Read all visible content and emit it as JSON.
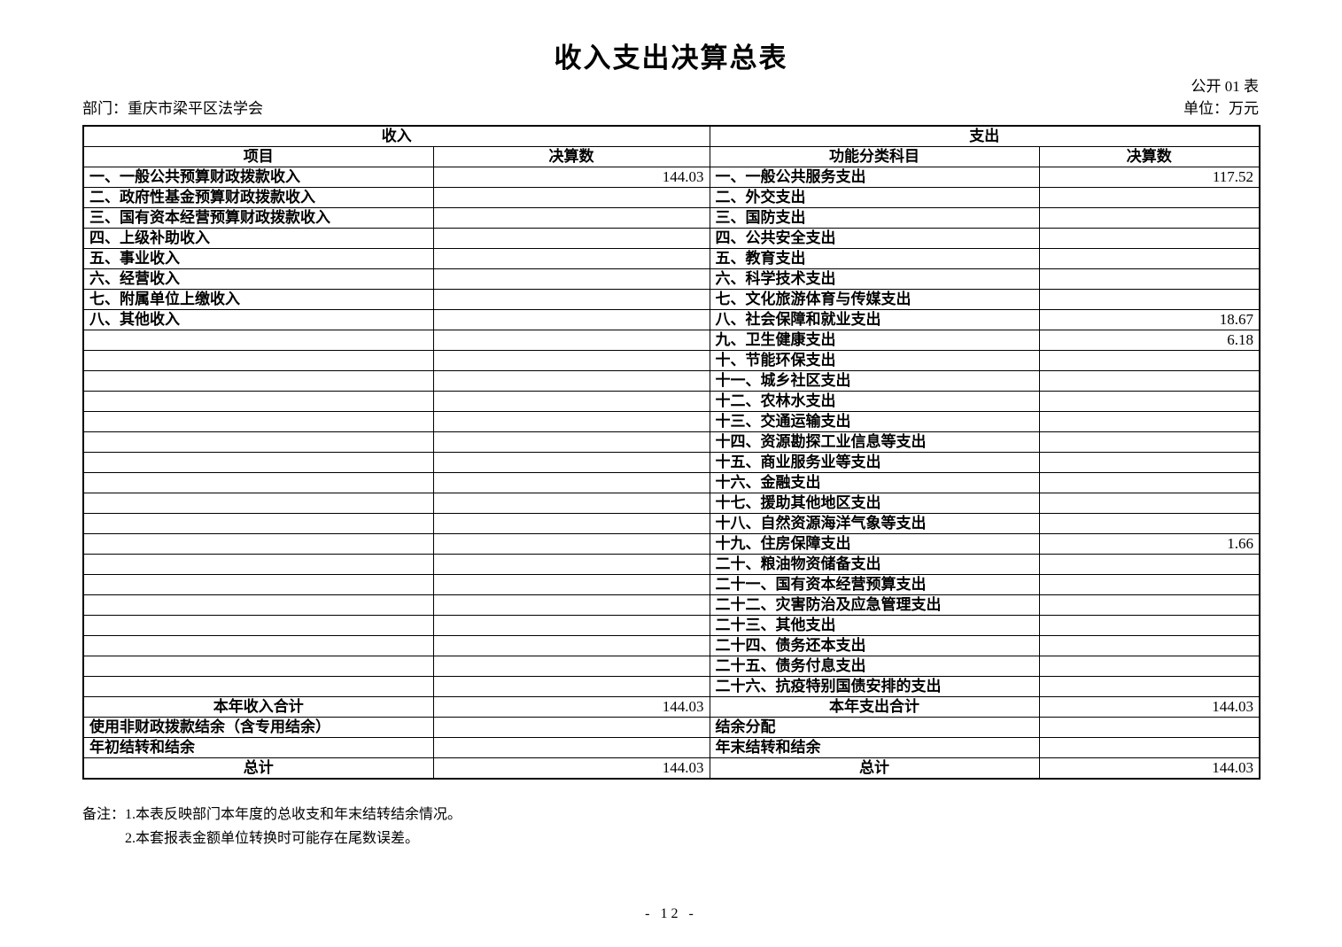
{
  "page": {
    "title": "收入支出决算总表",
    "doc_code": "公开 01 表",
    "department": "部门：重庆市梁平区法学会",
    "unit": "单位：万元",
    "notes_label": "备注：",
    "notes": [
      "1.本表反映部门本年度的总收支和年末结转结余情况。",
      "2.本套报表金额单位转换时可能存在尾数误差。"
    ],
    "page_number": "- 12 -"
  },
  "table": {
    "income_header": "收入",
    "expense_header": "支出",
    "income_item_col": "项目",
    "income_value_col": "决算数",
    "expense_item_col": "功能分类科目",
    "expense_value_col": "决算数",
    "rows": [
      {
        "inc_label": "一、一般公共预算财政拨款收入",
        "inc_value": "144.03",
        "exp_label": "一、一般公共服务支出",
        "exp_value": "117.52"
      },
      {
        "inc_label": "二、政府性基金预算财政拨款收入",
        "inc_value": "",
        "exp_label": "二、外交支出",
        "exp_value": ""
      },
      {
        "inc_label": "三、国有资本经营预算财政拨款收入",
        "inc_value": "",
        "exp_label": "三、国防支出",
        "exp_value": ""
      },
      {
        "inc_label": "四、上级补助收入",
        "inc_value": "",
        "exp_label": "四、公共安全支出",
        "exp_value": ""
      },
      {
        "inc_label": "五、事业收入",
        "inc_value": "",
        "exp_label": "五、教育支出",
        "exp_value": ""
      },
      {
        "inc_label": "六、经营收入",
        "inc_value": "",
        "exp_label": "六、科学技术支出",
        "exp_value": ""
      },
      {
        "inc_label": "七、附属单位上缴收入",
        "inc_value": "",
        "exp_label": "七、文化旅游体育与传媒支出",
        "exp_value": ""
      },
      {
        "inc_label": "八、其他收入",
        "inc_value": "",
        "exp_label": "八、社会保障和就业支出",
        "exp_value": "18.67"
      },
      {
        "inc_label": "",
        "inc_value": "",
        "exp_label": "九、卫生健康支出",
        "exp_value": "6.18"
      },
      {
        "inc_label": "",
        "inc_value": "",
        "exp_label": "十、节能环保支出",
        "exp_value": ""
      },
      {
        "inc_label": "",
        "inc_value": "",
        "exp_label": "十一、城乡社区支出",
        "exp_value": ""
      },
      {
        "inc_label": "",
        "inc_value": "",
        "exp_label": "十二、农林水支出",
        "exp_value": ""
      },
      {
        "inc_label": "",
        "inc_value": "",
        "exp_label": "十三、交通运输支出",
        "exp_value": ""
      },
      {
        "inc_label": "",
        "inc_value": "",
        "exp_label": "十四、资源勘探工业信息等支出",
        "exp_value": ""
      },
      {
        "inc_label": "",
        "inc_value": "",
        "exp_label": "十五、商业服务业等支出",
        "exp_value": ""
      },
      {
        "inc_label": "",
        "inc_value": "",
        "exp_label": "十六、金融支出",
        "exp_value": ""
      },
      {
        "inc_label": "",
        "inc_value": "",
        "exp_label": "十七、援助其他地区支出",
        "exp_value": ""
      },
      {
        "inc_label": "",
        "inc_value": "",
        "exp_label": "十八、自然资源海洋气象等支出",
        "exp_value": ""
      },
      {
        "inc_label": "",
        "inc_value": "",
        "exp_label": "十九、住房保障支出",
        "exp_value": "1.66"
      },
      {
        "inc_label": "",
        "inc_value": "",
        "exp_label": "二十、粮油物资储备支出",
        "exp_value": ""
      },
      {
        "inc_label": "",
        "inc_value": "",
        "exp_label": "二十一、国有资本经营预算支出",
        "exp_value": ""
      },
      {
        "inc_label": "",
        "inc_value": "",
        "exp_label": "二十二、灾害防治及应急管理支出",
        "exp_value": ""
      },
      {
        "inc_label": "",
        "inc_value": "",
        "exp_label": "二十三、其他支出",
        "exp_value": ""
      },
      {
        "inc_label": "",
        "inc_value": "",
        "exp_label": "二十四、债务还本支出",
        "exp_value": ""
      },
      {
        "inc_label": "",
        "inc_value": "",
        "exp_label": "二十五、债务付息支出",
        "exp_value": ""
      },
      {
        "inc_label": "",
        "inc_value": "",
        "exp_label": "二十六、抗疫特别国债安排的支出",
        "exp_value": ""
      },
      {
        "inc_label": "本年收入合计",
        "inc_align": "center",
        "inc_value": "144.03",
        "exp_label": "本年支出合计",
        "exp_align": "center",
        "exp_value": "144.03"
      },
      {
        "inc_label": "使用非财政拨款结余（含专用结余）",
        "inc_value": "",
        "exp_label": "结余分配",
        "exp_value": ""
      },
      {
        "inc_label": "年初结转和结余",
        "inc_value": "",
        "exp_label": "年末结转和结余",
        "exp_value": ""
      },
      {
        "inc_label": "总计",
        "inc_align": "center",
        "inc_value": "144.03",
        "exp_label": "总计",
        "exp_align": "center",
        "exp_value": "144.03"
      }
    ]
  }
}
